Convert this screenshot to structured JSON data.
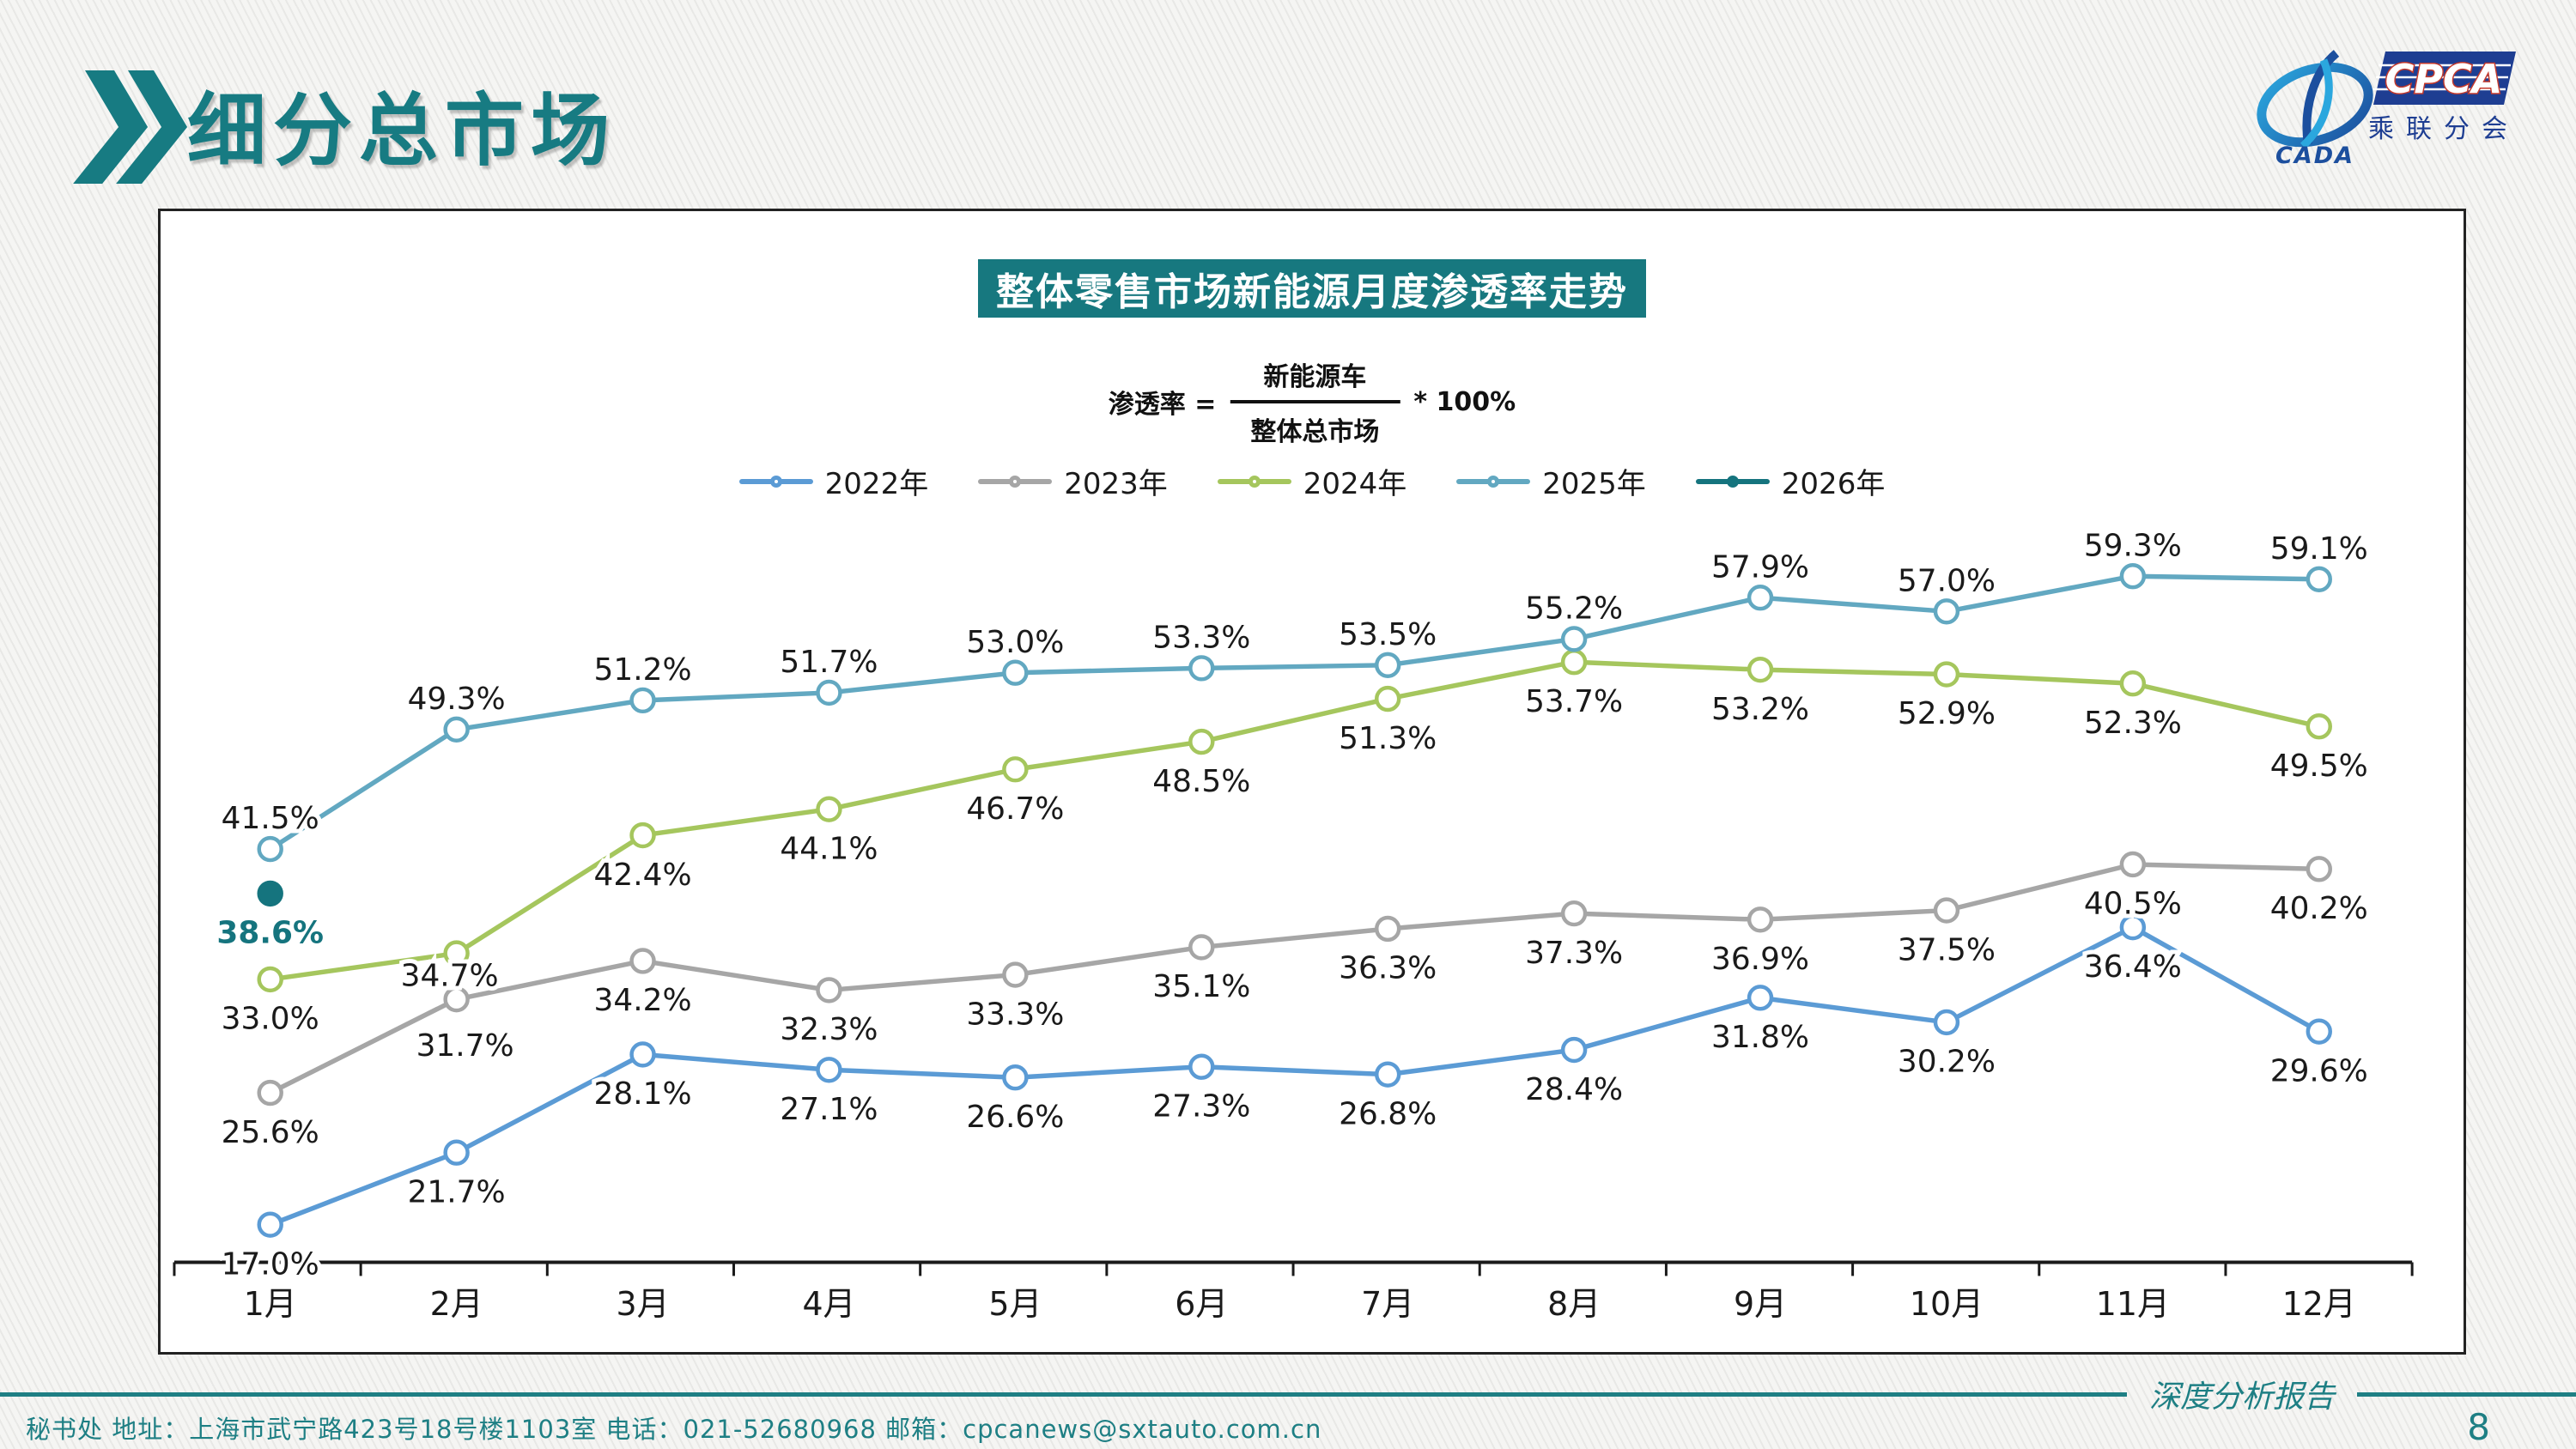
{
  "page": {
    "header": {
      "title": "细分总市场"
    },
    "logo": {
      "cada_text": "CADA",
      "cpca_text": "CPCA",
      "sub_text": "乘联分会"
    },
    "footer": {
      "contact": "秘书处  地址：上海市武宁路423号18号楼1103室 电话：021-52680968  邮箱：cpcanews@sxtauto.com.cn",
      "report_label": "深度分析报告",
      "page_number": "8"
    }
  },
  "chart": {
    "title": "整体零售市场新能源月度渗透率走势",
    "formula": {
      "lhs": "渗透率 =",
      "numerator": "新能源车",
      "denominator": "整体总市场",
      "rhs": "* 100%"
    }
  },
  "chart_data": {
    "type": "line",
    "title": "整体零售市场新能源月度渗透率走势",
    "unit": "%",
    "categories": [
      "1月",
      "2月",
      "3月",
      "4月",
      "5月",
      "6月",
      "7月",
      "8月",
      "9月",
      "10月",
      "11月",
      "12月"
    ],
    "series": [
      {
        "name": "2022年",
        "color": "#5B9BD5",
        "marker": "hollow",
        "label_position": "below",
        "values": [
          17.0,
          21.7,
          28.1,
          27.1,
          26.6,
          27.3,
          26.8,
          28.4,
          31.8,
          30.2,
          36.4,
          29.6
        ]
      },
      {
        "name": "2023年",
        "color": "#A6A6A6",
        "marker": "hollow",
        "label_position": "below",
        "values": [
          25.6,
          31.7,
          34.2,
          32.3,
          33.3,
          35.1,
          36.3,
          37.3,
          36.9,
          37.5,
          40.5,
          40.2
        ]
      },
      {
        "name": "2024年",
        "color": "#A5C65D",
        "marker": "hollow",
        "label_position": "below",
        "values": [
          33.0,
          34.7,
          42.4,
          44.1,
          46.7,
          48.5,
          51.3,
          53.7,
          53.2,
          52.9,
          52.3,
          49.5
        ]
      },
      {
        "name": "2025年",
        "color": "#62A8C1",
        "marker": "hollow",
        "label_position": "above",
        "values": [
          41.5,
          49.3,
          51.2,
          51.7,
          53.0,
          53.3,
          53.5,
          55.2,
          57.9,
          57.0,
          59.3,
          59.1
        ]
      },
      {
        "name": "2026年",
        "color": "#15747E",
        "marker": "filled",
        "label_position": "below",
        "label_color": "#15747E",
        "values": [
          38.6
        ]
      }
    ],
    "ylim": [
      14.5,
      63
    ],
    "grid": false,
    "legend_position": "top",
    "xlabel": "",
    "ylabel": ""
  }
}
